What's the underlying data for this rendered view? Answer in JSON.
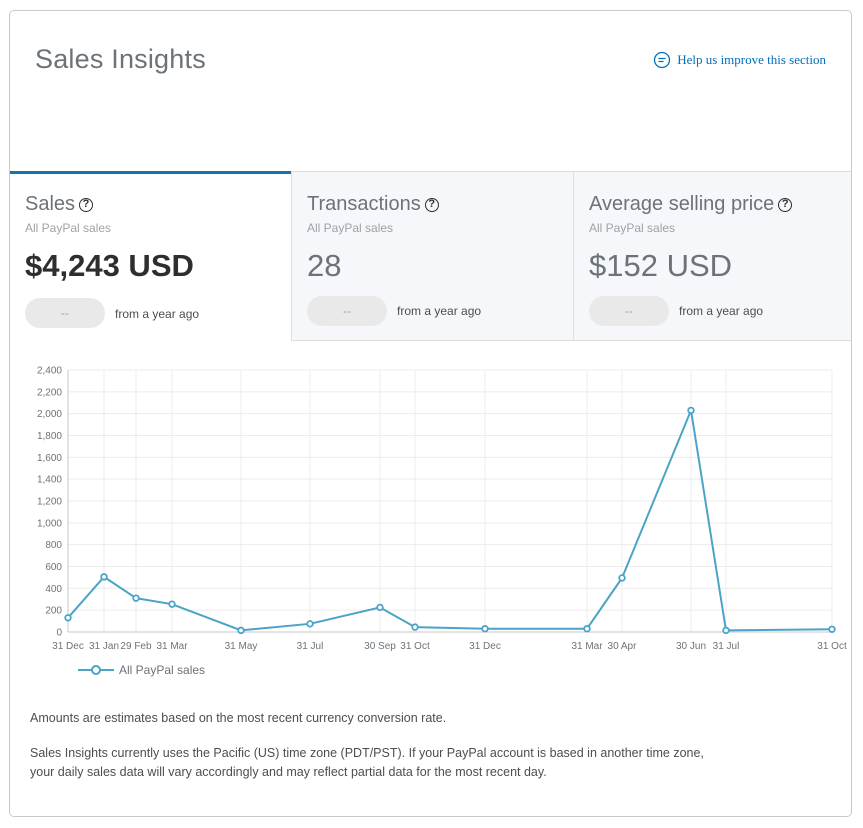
{
  "header": {
    "title": "Sales Insights",
    "help_link": "Help us improve this section"
  },
  "tabs": [
    {
      "label": "Sales",
      "subtitle": "All PayPal sales",
      "value": "$4,243 USD",
      "change": "--",
      "note": "from a year ago"
    },
    {
      "label": "Transactions",
      "subtitle": "All PayPal sales",
      "value": "28",
      "change": "--",
      "note": "from a year ago"
    },
    {
      "label": "Average selling price",
      "subtitle": "All PayPal sales",
      "value": "$152 USD",
      "change": "--",
      "note": "from a year ago"
    }
  ],
  "legend": {
    "label": "All PayPal sales"
  },
  "footer": {
    "note1": "Amounts are estimates based on the most recent currency conversion rate.",
    "note2": "Sales Insights currently uses the Pacific (US) time zone (PDT/PST). If your PayPal account is based in another time zone,",
    "note3": "your daily sales data will vary accordingly and may reflect partial data for the most recent day."
  },
  "colors": {
    "accent": "#1873a8",
    "line": "#4ba3c7",
    "link": "#0070ba"
  },
  "chart_data": {
    "type": "line",
    "x": [
      "31 Dec",
      "31 Jan",
      "29 Feb",
      "31 Mar",
      "31 May",
      "31 Jul",
      "30 Sep",
      "31 Oct",
      "31 Dec",
      "31 Mar",
      "30 Apr",
      "30 Jun",
      "31 Jul",
      "31 Oct"
    ],
    "series": [
      {
        "name": "All PayPal sales",
        "values": [
          130,
          505,
          310,
          255,
          15,
          75,
          225,
          45,
          30,
          30,
          495,
          2030,
          15,
          25
        ]
      }
    ],
    "yticks": [
      0,
      200,
      400,
      600,
      800,
      "1,000",
      "1,200",
      "1,400",
      "1,600",
      "1,800",
      "2,000",
      "2,200",
      "2,400"
    ],
    "ylim": [
      0,
      2400
    ],
    "xlabel": "",
    "ylabel": "",
    "grid": true,
    "legend_position": "bottom-left"
  }
}
